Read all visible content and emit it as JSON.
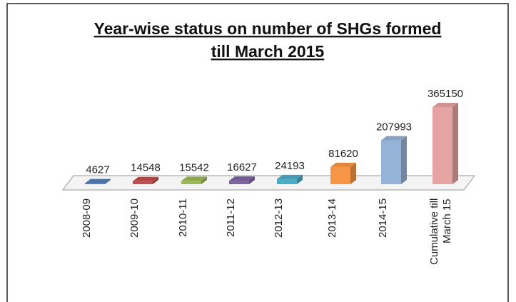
{
  "chart_data": {
    "type": "bar3d",
    "title": "Year-wise status on number of SHGs formed",
    "subtitle": "till March 2015",
    "categories": [
      "2008-09",
      "2009-10",
      "2010-11",
      "2011-12",
      "2012-13",
      "2013-14",
      "2014-15",
      "Cumulative till March 15"
    ],
    "values": [
      4627,
      14548,
      15542,
      16627,
      24193,
      81620,
      207993,
      365150
    ],
    "colors": [
      "#4f81bd",
      "#c0504d",
      "#9bbb59",
      "#8064a2",
      "#4bacc6",
      "#f79646",
      "#95b3d7",
      "#e6a3a3"
    ]
  }
}
